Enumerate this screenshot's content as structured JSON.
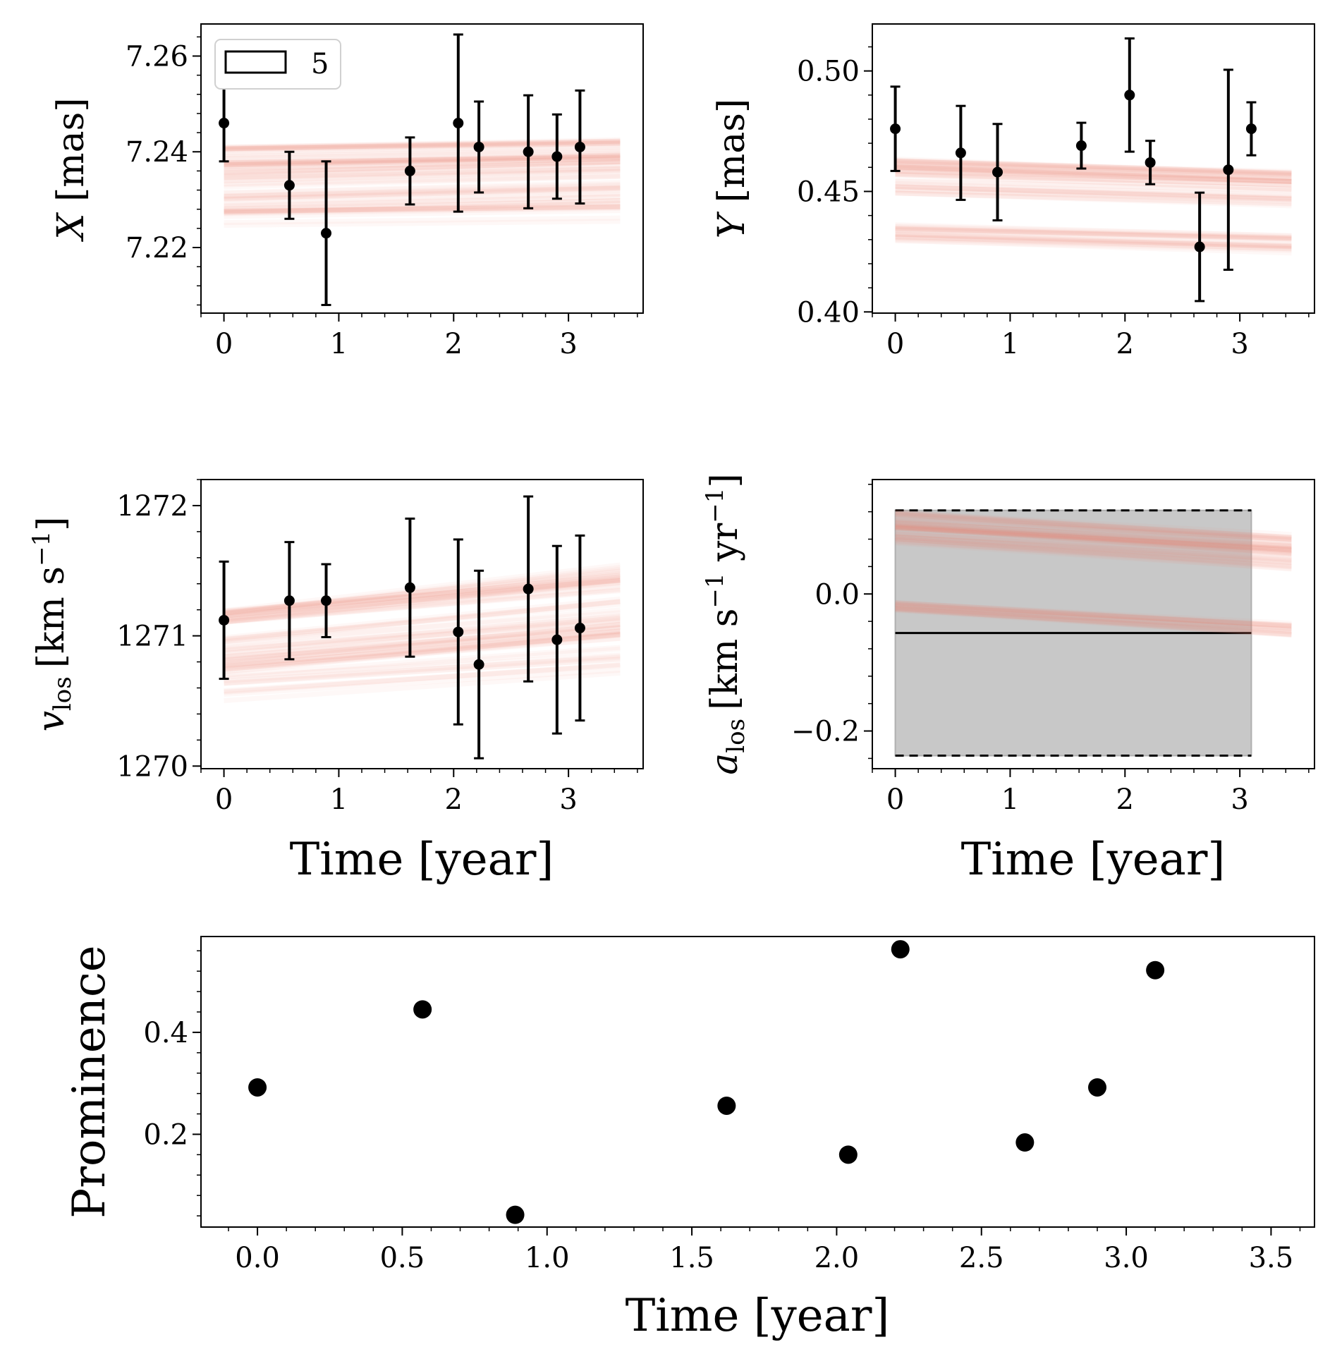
{
  "figure": {
    "legend_label": "5",
    "colors": {
      "model": "#f08070",
      "data": "#000000",
      "band": "#c8c8c8"
    }
  },
  "chart_data": [
    {
      "id": "x",
      "type": "scatter",
      "ylabel_sym": "X",
      "ylabel_unit": "[mas]",
      "xlabel": "",
      "xticks": [
        "0",
        "1",
        "2",
        "3"
      ],
      "yticks": [
        7.22,
        7.24,
        7.26
      ],
      "ytick_labels": [
        "7.22",
        "7.24",
        "7.26"
      ],
      "xlim": [
        -0.2,
        3.65
      ],
      "ylim": [
        7.2063,
        7.2667
      ],
      "x": [
        0.0,
        0.57,
        0.89,
        1.62,
        2.04,
        2.22,
        2.65,
        2.9,
        3.1
      ],
      "y": [
        7.246,
        7.233,
        7.223,
        7.236,
        7.246,
        7.241,
        7.24,
        7.239,
        7.241
      ],
      "yerr": [
        0.008,
        0.007,
        0.015,
        0.007,
        0.0185,
        0.0095,
        0.0118,
        0.0088,
        0.0118
      ],
      "model_lines": [
        {
          "y0": 7.2385,
          "slope": 0.0004,
          "n": 28,
          "spread": 0.0025
        },
        {
          "y0": 7.2325,
          "slope": 0.0006,
          "n": 36,
          "spread": 0.0055
        },
        {
          "y0": 7.226,
          "slope": 0.0003,
          "n": 10,
          "spread": 0.002
        }
      ]
    },
    {
      "id": "y",
      "type": "scatter",
      "ylabel_sym": "Y",
      "ylabel_unit": "[mas]",
      "xlabel": "",
      "xticks": [
        "0",
        "1",
        "2",
        "3"
      ],
      "yticks": [
        0.4,
        0.45,
        0.5
      ],
      "ytick_labels": [
        "0.40",
        "0.45",
        "0.50"
      ],
      "xlim": [
        -0.2,
        3.65
      ],
      "ylim": [
        0.3995,
        0.5195
      ],
      "x": [
        0.0,
        0.57,
        0.89,
        1.62,
        2.04,
        2.22,
        2.65,
        2.9,
        3.1
      ],
      "y": [
        0.476,
        0.466,
        0.458,
        0.469,
        0.49,
        0.462,
        0.427,
        0.459,
        0.476
      ],
      "yerr": [
        0.0175,
        0.0195,
        0.02,
        0.0095,
        0.0235,
        0.009,
        0.0225,
        0.0415,
        0.011
      ],
      "model_lines": [
        {
          "y0": 0.46,
          "slope": -0.0015,
          "n": 30,
          "spread": 0.0035
        },
        {
          "y0": 0.452,
          "slope": -0.0013,
          "n": 14,
          "spread": 0.003
        },
        {
          "y0": 0.433,
          "slope": -0.0013,
          "n": 22,
          "spread": 0.0035
        }
      ]
    },
    {
      "id": "vlos",
      "type": "scatter",
      "ylabel_sym": "v",
      "ylabel_sub": "los",
      "ylabel_unit": "[km s",
      "ylabel_sup": "−1",
      "ylabel_close": "]",
      "xlabel": "Time [year]",
      "xticks": [
        "0",
        "1",
        "2",
        "3"
      ],
      "yticks": [
        1270,
        1271,
        1272
      ],
      "ytick_labels": [
        "1270",
        "1271",
        "1272"
      ],
      "xlim": [
        -0.2,
        3.65
      ],
      "ylim": [
        1269.98,
        1272.2
      ],
      "x": [
        0.0,
        0.57,
        0.89,
        1.62,
        2.04,
        2.22,
        2.65,
        2.9,
        3.1
      ],
      "y": [
        1271.12,
        1271.27,
        1271.27,
        1271.37,
        1271.03,
        1270.78,
        1271.36,
        1270.97,
        1271.06
      ],
      "yerr": [
        0.45,
        0.45,
        0.28,
        0.53,
        0.71,
        0.72,
        0.71,
        0.72,
        0.71
      ],
      "model_lines": [
        {
          "y0": 1271.15,
          "slope": 0.085,
          "n": 26,
          "spread": 0.05
        },
        {
          "y0": 1270.85,
          "slope": 0.075,
          "n": 34,
          "spread": 0.14
        },
        {
          "y0": 1270.6,
          "slope": 0.06,
          "n": 12,
          "spread": 0.1
        }
      ]
    },
    {
      "id": "alos",
      "type": "area",
      "ylabel_sym": "a",
      "ylabel_sub": "los",
      "ylabel_unit": "[km s",
      "ylabel_sup": "−1",
      "ylabel_mid": " yr",
      "ylabel_sup2": "−1",
      "ylabel_close": "]",
      "xlabel": "Time [year]",
      "xticks": [
        "0",
        "1",
        "2",
        "3"
      ],
      "yticks": [
        -0.2,
        0.0
      ],
      "ytick_labels": [
        "−0.2",
        "0.0"
      ],
      "xlim": [
        -0.2,
        3.65
      ],
      "ylim": [
        -0.255,
        0.167
      ],
      "band": {
        "x0": 0.0,
        "x1": 3.1,
        "ymin": -0.236,
        "ymax": 0.122,
        "median": -0.057
      },
      "model_lines": [
        {
          "y0": 0.108,
          "slope": -0.01,
          "n": 30,
          "spread": 0.012
        },
        {
          "y0": 0.085,
          "slope": -0.01,
          "n": 20,
          "spread": 0.012
        },
        {
          "y0": -0.018,
          "slope": -0.0095,
          "n": 20,
          "spread": 0.006
        }
      ]
    },
    {
      "id": "prominence",
      "type": "scatter",
      "ylabel": "Prominence",
      "xlabel": "Time [year]",
      "xticks": [
        0.0,
        0.5,
        1.0,
        1.5,
        2.0,
        2.5,
        3.0,
        3.5
      ],
      "xtick_labels": [
        "0.0",
        "0.5",
        "1.0",
        "1.5",
        "2.0",
        "2.5",
        "3.0",
        "3.5"
      ],
      "yticks": [
        0.2,
        0.4
      ],
      "ytick_labels": [
        "0.2",
        "0.4"
      ],
      "xlim": [
        -0.195,
        3.65
      ],
      "ylim": [
        0.018,
        0.588
      ],
      "x": [
        0.0,
        0.57,
        0.89,
        1.62,
        2.04,
        2.22,
        2.65,
        2.9,
        3.1
      ],
      "y": [
        0.292,
        0.445,
        0.042,
        0.256,
        0.16,
        0.563,
        0.184,
        0.292,
        0.522
      ]
    }
  ]
}
